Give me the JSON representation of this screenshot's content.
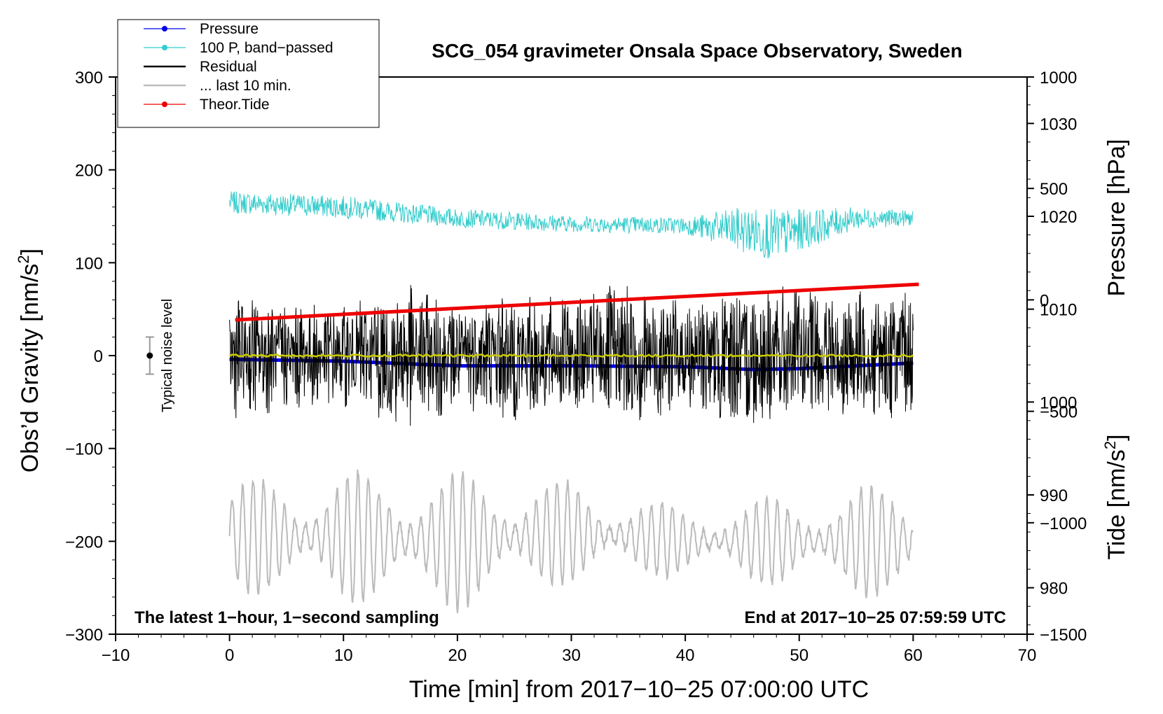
{
  "chart_data": {
    "type": "line",
    "title": "SCG_054 gravimeter Onsala Space Observatory, Sweden",
    "xlabel": "Time [min] from 2017−10−25 07:00:00 UTC",
    "ylabel_prefix": "Obs’d Gravity [nm/s",
    "ylabel_sup": "2",
    "ylabel_suffix": "]",
    "y2label": "Pressure [hPa]",
    "y3label_prefix": "Tide [nm/s",
    "y3label_sup": "2",
    "y3label_suffix": "]",
    "xlim": [
      -10,
      70
    ],
    "ylim": [
      -300,
      300
    ],
    "pressure_axis_hpa": [
      975,
      1035
    ],
    "tide_axis_nms2": [
      -1500,
      1000
    ],
    "x_ticks": [
      -10,
      0,
      10,
      20,
      30,
      40,
      50,
      60,
      70
    ],
    "x_tick_labels": [
      "−10",
      "0",
      "10",
      "20",
      "30",
      "40",
      "50",
      "60",
      "70"
    ],
    "y_ticks": [
      -300,
      -200,
      -100,
      0,
      100,
      200,
      300
    ],
    "y_tick_labels": [
      "−300",
      "−200",
      "−100",
      "0",
      "100",
      "200",
      "300"
    ],
    "pressure_ticks": [
      980,
      990,
      1000,
      1010,
      1020,
      1030
    ],
    "pressure_tick_labels": [
      "980",
      "990",
      "1000",
      "1010",
      "1020",
      "1030"
    ],
    "tide_ticks": [
      -1500,
      -1000,
      -500,
      0,
      500,
      1000
    ],
    "tide_tick_labels": [
      "−1500",
      "−1000",
      "−500",
      "0",
      "500",
      "1000"
    ],
    "legend": {
      "placement": "top-left, outside plot",
      "entries": [
        {
          "label": "Pressure",
          "color": "#0000ee",
          "style": "line+dot"
        },
        {
          "label": "100 P, band−passed",
          "color": "#33cccc",
          "style": "line+dot"
        },
        {
          "label": "Residual",
          "color": "#000000",
          "style": "line"
        },
        {
          "label": "... last 10 min.",
          "color": "#bbbbbb",
          "style": "line"
        },
        {
          "label": "Theor.Tide",
          "color": "#ee0000",
          "style": "line+dot"
        }
      ]
    },
    "annotations": {
      "noise_label": "Typical noise level",
      "noise_level_nms2": 20,
      "noise_x_min": -7,
      "bottom_left": "The latest 1−hour, 1−second sampling",
      "bottom_right": "End at 2017−10−25 07:59:59 UTC"
    },
    "series": [
      {
        "name": "Pressure",
        "axis": "pressure_hPa",
        "color": "#0000ee",
        "x": [
          0,
          10,
          20,
          30,
          40,
          46,
          50,
          55,
          60
        ],
        "values": [
          1004.6,
          1004.4,
          1003.9,
          1003.9,
          1003.8,
          1003.5,
          1003.6,
          1003.9,
          1004.2
        ]
      },
      {
        "name": "100 P, band−passed",
        "axis": "gravity_nms2",
        "color": "#33cccc",
        "x": [
          0,
          10,
          20,
          30,
          40,
          45,
          48,
          52,
          55,
          60
        ],
        "envelope_center": [
          165,
          160,
          148,
          142,
          140,
          135,
          130,
          140,
          148,
          148
        ],
        "envelope_halfwidth": [
          12,
          12,
          10,
          9,
          9,
          25,
          28,
          18,
          12,
          8
        ]
      },
      {
        "name": "Residual",
        "axis": "gravity_nms2",
        "color": "#000000",
        "x": [
          0,
          5,
          10,
          15,
          20,
          25,
          30,
          35,
          40,
          45,
          50,
          55,
          60
        ],
        "envelope_halfwidth": [
          70,
          60,
          55,
          85,
          60,
          75,
          60,
          85,
          60,
          85,
          75,
          70,
          70
        ]
      },
      {
        "name": "Residual mean",
        "axis": "gravity_nms2",
        "color": "#cccc00",
        "x": [
          0,
          60
        ],
        "values": [
          0,
          0
        ]
      },
      {
        "name": "... last 10 min.",
        "axis": "gravity_nms2",
        "color": "#bbbbbb",
        "x": [
          0,
          10,
          20,
          30,
          40,
          50,
          60
        ],
        "envelope_center": [
          -195,
          -195,
          -200,
          -190,
          -200,
          -200,
          -200
        ],
        "envelope_halfwidth": [
          60,
          70,
          75,
          55,
          35,
          50,
          65
        ]
      },
      {
        "name": "Theor.Tide",
        "axis": "tide_nms2",
        "color": "#ee0000",
        "x": [
          0.5,
          60.5
        ],
        "values": [
          -90,
          70
        ]
      }
    ]
  }
}
